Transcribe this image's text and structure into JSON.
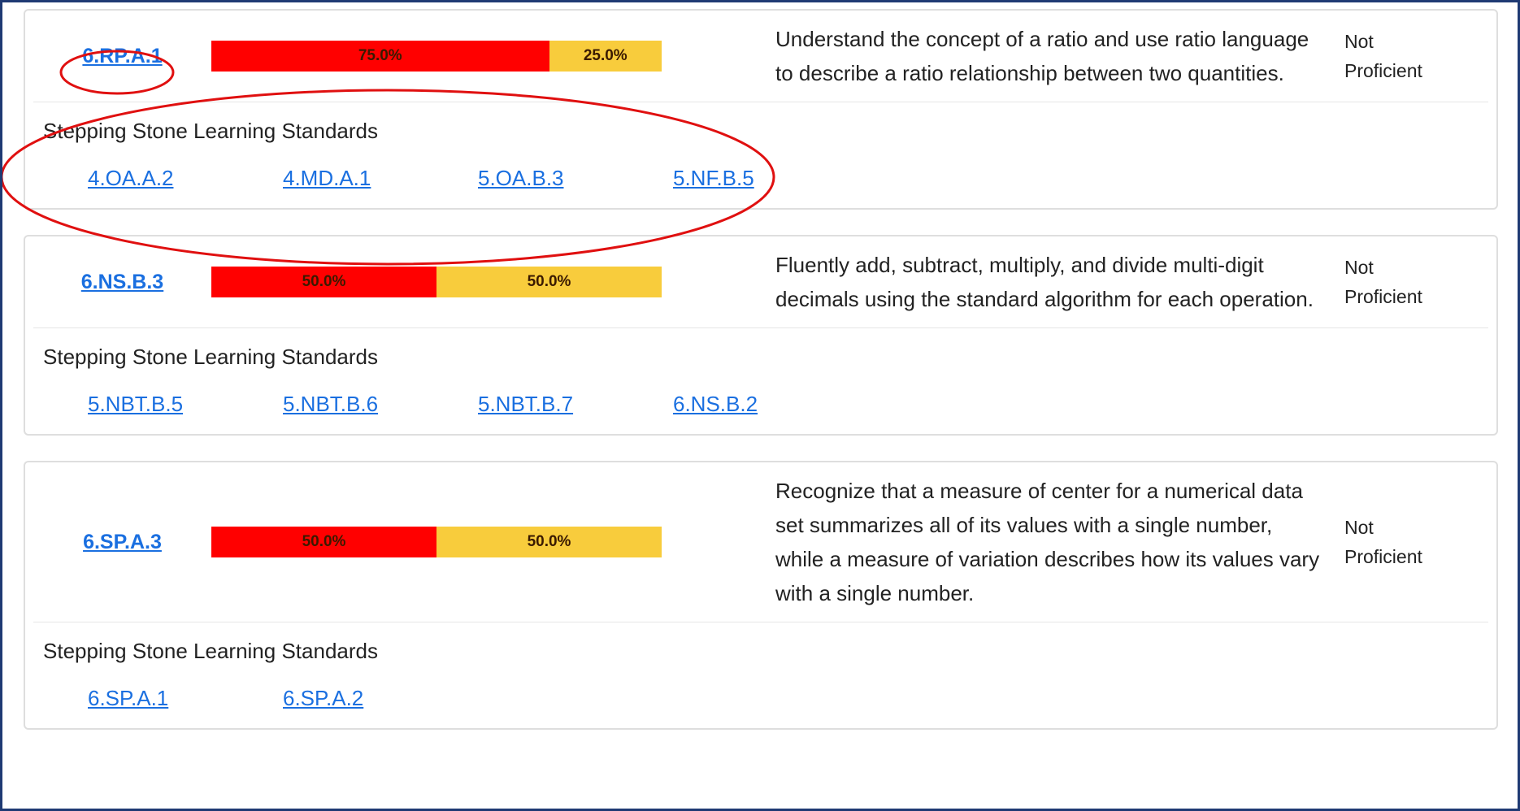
{
  "cards": [
    {
      "code": "6.RP.A.1",
      "bar": {
        "values": [
          75,
          25
        ],
        "value_labels": [
          "75.0%",
          "25.0%"
        ],
        "colors": [
          "#ff0000",
          "#f8cc3c"
        ]
      },
      "description": "Understand the concept of a ratio and use ratio language to describe a ratio relationship between two quantities.",
      "status": "Not Proficient",
      "stepping_title": "Stepping Stone Learning Standards",
      "stepping": [
        "4.OA.A.2",
        "4.MD.A.1",
        "5.OA.B.3",
        "5.NF.B.5"
      ]
    },
    {
      "code": "6.NS.B.3",
      "bar": {
        "values": [
          50,
          50
        ],
        "value_labels": [
          "50.0%",
          "50.0%"
        ],
        "colors": [
          "#ff0000",
          "#f8cc3c"
        ]
      },
      "description": "Fluently add, subtract, multiply, and divide multi-digit decimals using the standard algorithm for each operation.",
      "status": "Not Proficient",
      "stepping_title": "Stepping Stone Learning Standards",
      "stepping": [
        "5.NBT.B.5",
        "5.NBT.B.6",
        "5.NBT.B.7",
        "6.NS.B.2"
      ]
    },
    {
      "code": "6.SP.A.3",
      "bar": {
        "values": [
          50,
          50
        ],
        "value_labels": [
          "50.0%",
          "50.0%"
        ],
        "colors": [
          "#ff0000",
          "#f8cc3c"
        ]
      },
      "description": "Recognize that a measure of center for a numerical data set summarizes all of its values with a single number, while a measure of variation describes how its values vary with a single number.",
      "status": "Not Proficient",
      "stepping_title": "Stepping Stone Learning Standards",
      "stepping": [
        "6.SP.A.1",
        "6.SP.A.2"
      ]
    }
  ]
}
